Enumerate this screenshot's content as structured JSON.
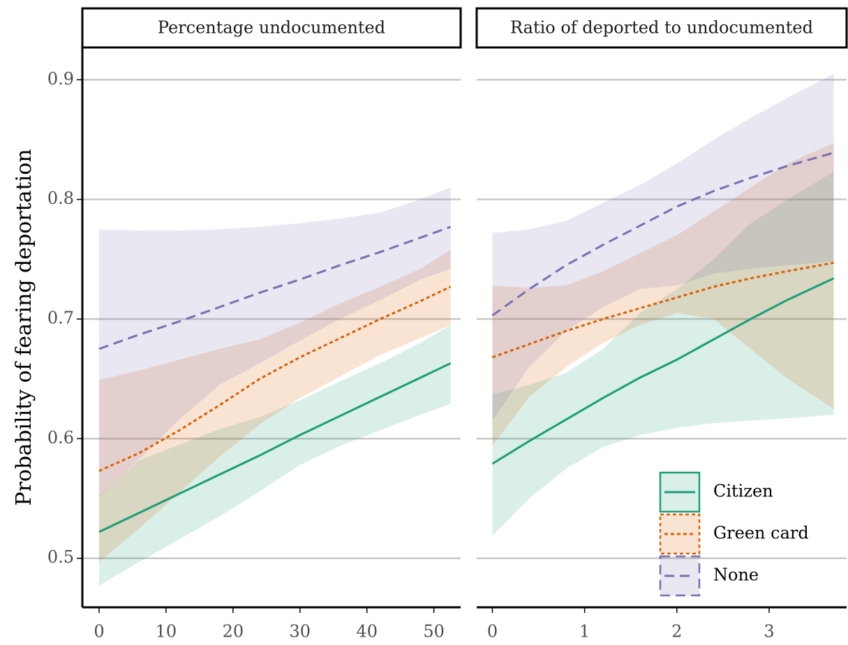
{
  "chart_data": {
    "type": "line",
    "ylabel": "Probability of fearing deportation",
    "ylim": [
      0.459,
      0.927
    ],
    "yticks": [
      0.5,
      0.6,
      0.7,
      0.8,
      0.9
    ],
    "grid": true,
    "legend": "bottom right",
    "series": [
      {
        "name": "Citizen",
        "color": "#1b9e77",
        "dash": "solid"
      },
      {
        "name": "Green card",
        "color": "#d95f02",
        "dash": "dotted"
      },
      {
        "name": "None",
        "color": "#7570b3",
        "dash": "dashed"
      }
    ],
    "panels": [
      {
        "title": "Percentage undocumented",
        "xlim": [
          -2.5,
          54
        ],
        "xticks": [
          0,
          10,
          20,
          30,
          40,
          50
        ],
        "x": [
          0,
          6,
          12,
          18,
          24,
          30,
          36,
          42,
          48,
          52.5
        ],
        "series": [
          {
            "values": [
              0.522,
              0.538,
              0.554,
              0.57,
              0.586,
              0.603,
              0.619,
              0.635,
              0.651,
              0.663
            ],
            "lower": [
              0.477,
              0.497,
              0.516,
              0.535,
              0.556,
              0.578,
              0.594,
              0.607,
              0.62,
              0.629
            ],
            "upper": [
              0.552,
              0.582,
              0.595,
              0.608,
              0.618,
              0.632,
              0.648,
              0.663,
              0.68,
              0.695
            ]
          },
          {
            "values": [
              0.573,
              0.588,
              0.607,
              0.628,
              0.65,
              0.668,
              0.684,
              0.7,
              0.715,
              0.727
            ],
            "lower": [
              0.497,
              0.525,
              0.555,
              0.585,
              0.612,
              0.634,
              0.652,
              0.67,
              0.684,
              0.695
            ],
            "upper": [
              0.649,
              0.657,
              0.666,
              0.675,
              0.683,
              0.697,
              0.713,
              0.727,
              0.742,
              0.758
            ]
          },
          {
            "values": [
              0.675,
              0.687,
              0.698,
              0.71,
              0.722,
              0.733,
              0.745,
              0.756,
              0.768,
              0.777
            ],
            "lower": [
              0.551,
              0.583,
              0.616,
              0.645,
              0.663,
              0.682,
              0.7,
              0.716,
              0.733,
              0.742
            ],
            "upper": [
              0.775,
              0.774,
              0.774,
              0.775,
              0.777,
              0.78,
              0.784,
              0.789,
              0.8,
              0.81
            ]
          }
        ]
      },
      {
        "title": "Ratio of deported to undocumented",
        "xlim": [
          -0.17,
          3.84
        ],
        "xticks": [
          0,
          1,
          2,
          3
        ],
        "x": [
          0,
          0.4,
          0.8,
          1.2,
          1.6,
          2.0,
          2.4,
          2.8,
          3.2,
          3.7
        ],
        "series": [
          {
            "values": [
              0.579,
              0.598,
              0.616,
              0.634,
              0.651,
              0.666,
              0.683,
              0.7,
              0.716,
              0.734
            ],
            "lower": [
              0.519,
              0.55,
              0.575,
              0.593,
              0.603,
              0.609,
              0.613,
              0.615,
              0.617,
              0.62
            ],
            "upper": [
              0.637,
              0.645,
              0.655,
              0.675,
              0.705,
              0.725,
              0.75,
              0.78,
              0.8,
              0.823
            ]
          },
          {
            "values": [
              0.668,
              0.679,
              0.69,
              0.7,
              0.709,
              0.718,
              0.727,
              0.734,
              0.74,
              0.747
            ],
            "lower": [
              0.594,
              0.635,
              0.66,
              0.68,
              0.695,
              0.705,
              0.7,
              0.675,
              0.65,
              0.625
            ],
            "upper": [
              0.728,
              0.726,
              0.728,
              0.74,
              0.755,
              0.77,
              0.79,
              0.81,
              0.83,
              0.847
            ]
          },
          {
            "values": [
              0.703,
              0.725,
              0.745,
              0.762,
              0.778,
              0.794,
              0.807,
              0.818,
              0.828,
              0.839
            ],
            "lower": [
              0.615,
              0.66,
              0.69,
              0.71,
              0.725,
              0.728,
              0.738,
              0.742,
              0.745,
              0.748
            ],
            "upper": [
              0.772,
              0.775,
              0.782,
              0.797,
              0.812,
              0.83,
              0.85,
              0.868,
              0.885,
              0.905
            ]
          }
        ]
      }
    ]
  }
}
